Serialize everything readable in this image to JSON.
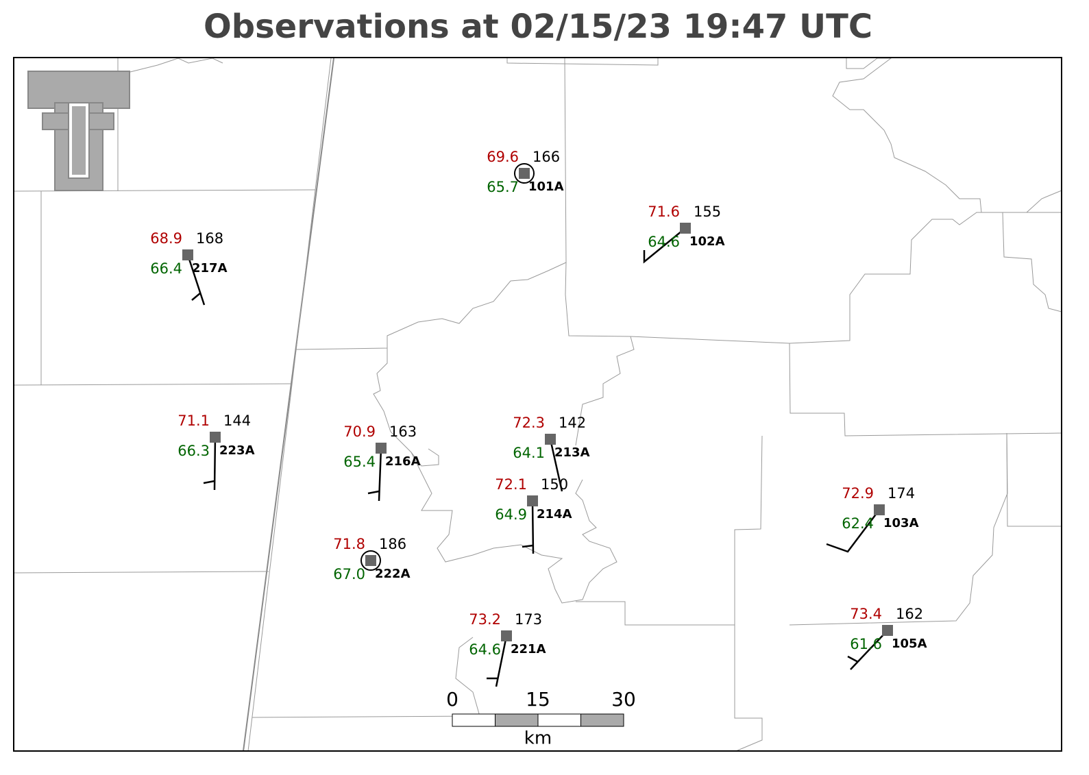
{
  "title": "Observations at 02/15/23 19:47 UTC",
  "stations": [
    {
      "id": "101A",
      "temperature": "69.6",
      "dewpoint": "65.7",
      "pressure": "166"
    },
    {
      "id": "102A",
      "temperature": "71.6",
      "dewpoint": "64.6",
      "pressure": "155"
    },
    {
      "id": "217A",
      "temperature": "68.9",
      "dewpoint": "66.4",
      "pressure": "168"
    },
    {
      "id": "223A",
      "temperature": "71.1",
      "dewpoint": "66.3",
      "pressure": "144"
    },
    {
      "id": "216A",
      "temperature": "70.9",
      "dewpoint": "65.4",
      "pressure": "163"
    },
    {
      "id": "213A",
      "temperature": "72.3",
      "dewpoint": "64.1",
      "pressure": "142"
    },
    {
      "id": "214A",
      "temperature": "72.1",
      "dewpoint": "64.9",
      "pressure": "150"
    },
    {
      "id": "222A",
      "temperature": "71.8",
      "dewpoint": "67.0",
      "pressure": "186"
    },
    {
      "id": "221A",
      "temperature": "73.2",
      "dewpoint": "64.6",
      "pressure": "173"
    },
    {
      "id": "103A",
      "temperature": "72.9",
      "dewpoint": "62.4",
      "pressure": "174"
    },
    {
      "id": "105A",
      "temperature": "73.4",
      "dewpoint": "61.6",
      "pressure": "162"
    }
  ],
  "scale_bar": {
    "labels": [
      "0",
      "15",
      "30"
    ],
    "unit": "km"
  }
}
